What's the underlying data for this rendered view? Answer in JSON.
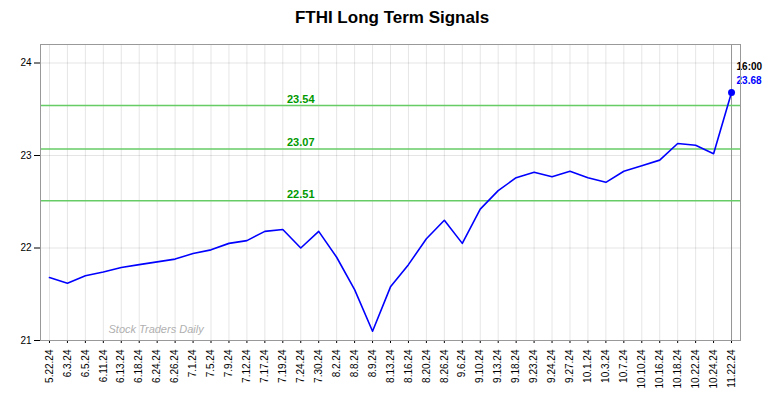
{
  "chart_data": {
    "type": "line",
    "title": "FTHI Long Term Signals",
    "categories": [
      "5.22.24",
      "6.3.24",
      "6.5.24",
      "6.11.24",
      "6.13.24",
      "6.18.24",
      "6.24.24",
      "6.26.24",
      "7.1.24",
      "7.5.24",
      "7.9.24",
      "7.12.24",
      "7.17.24",
      "7.19.24",
      "7.24.24",
      "7.30.24",
      "8.2.24",
      "8.8.24",
      "8.9.24",
      "8.13.24",
      "8.16.24",
      "8.20.24",
      "8.26.24",
      "9.6.24",
      "9.10.24",
      "9.13.24",
      "9.18.24",
      "9.23.24",
      "9.24.24",
      "9.27.24",
      "10.1.24",
      "10.3.24",
      "10.7.24",
      "10.10.24",
      "10.16.24",
      "10.18.24",
      "10.22.24",
      "10.24.24",
      "11.22.24"
    ],
    "values": [
      21.68,
      21.62,
      21.7,
      21.74,
      21.79,
      21.82,
      21.85,
      21.88,
      21.94,
      21.98,
      22.05,
      22.08,
      22.18,
      22.2,
      22.0,
      22.18,
      21.9,
      21.55,
      21.1,
      21.58,
      21.82,
      22.1,
      22.3,
      22.05,
      22.42,
      22.62,
      22.76,
      22.82,
      22.77,
      22.83,
      22.76,
      22.71,
      22.83,
      22.89,
      22.95,
      23.13,
      23.11,
      23.02,
      23.68
    ],
    "color": "blue",
    "ylim": [
      21.0,
      24.2
    ],
    "yticks": [
      21,
      22,
      23,
      24
    ],
    "grid": true,
    "hlines": [
      {
        "y": 23.54,
        "label": "23.54",
        "color": "#66cc66",
        "label_color": "#009900"
      },
      {
        "y": 23.07,
        "label": "23.07",
        "color": "#66cc66",
        "label_color": "#009900"
      },
      {
        "y": 22.51,
        "label": "22.51",
        "color": "#66cc66",
        "label_color": "#009900"
      }
    ],
    "annotations": [
      {
        "text": "16:00",
        "color": "black"
      },
      {
        "text": "23.68",
        "color": "blue"
      }
    ],
    "watermark": {
      "text": "Stock Traders Daily",
      "color": "#b0b0b0"
    }
  }
}
